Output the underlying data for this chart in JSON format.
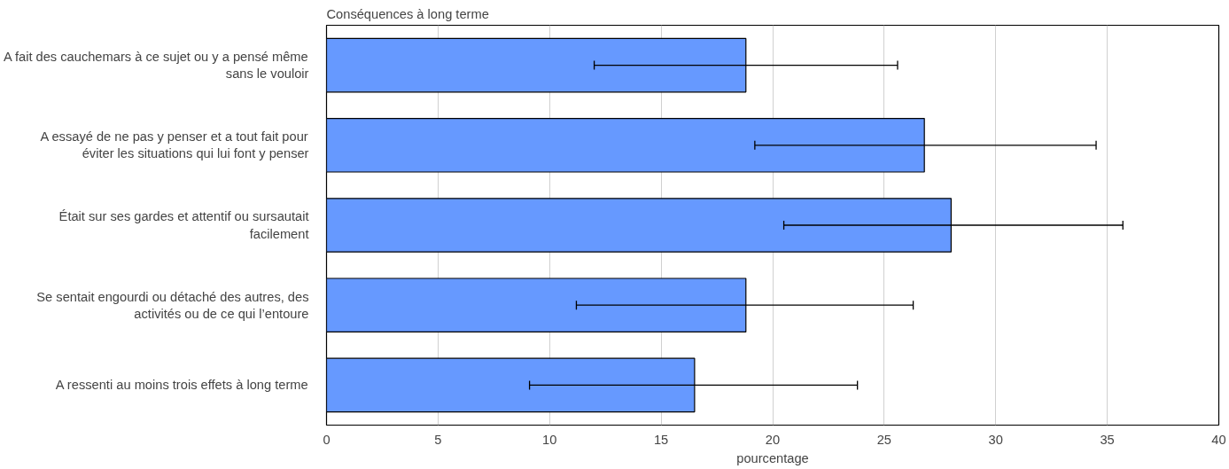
{
  "chart_data": {
    "type": "bar",
    "orientation": "horizontal",
    "title": "Conséquences à long terme",
    "xlabel": "pourcentage",
    "categories": [
      "A fait des cauchemars à ce sujet ou y a pensé même sans le vouloir",
      "A essayé de ne pas y penser et a tout fait pour éviter les situations qui lui font y penser",
      "Était sur ses gardes et attentif ou sursautait facilement",
      "Se sentait engourdi ou détaché des autres, des activités ou de ce qui l’entoure",
      "A ressenti au moins trois effets à long terme"
    ],
    "values": [
      18.8,
      26.8,
      28.0,
      18.8,
      16.5
    ],
    "errors": [
      [
        12.0,
        25.6
      ],
      [
        19.2,
        34.5
      ],
      [
        20.5,
        35.7
      ],
      [
        11.2,
        26.3
      ],
      [
        9.1,
        23.8
      ]
    ],
    "color": "#6699ff",
    "xlim": [
      0,
      40
    ],
    "xticks": [
      0,
      5,
      10,
      15,
      20,
      25,
      30,
      35,
      40
    ],
    "grid": "x"
  }
}
